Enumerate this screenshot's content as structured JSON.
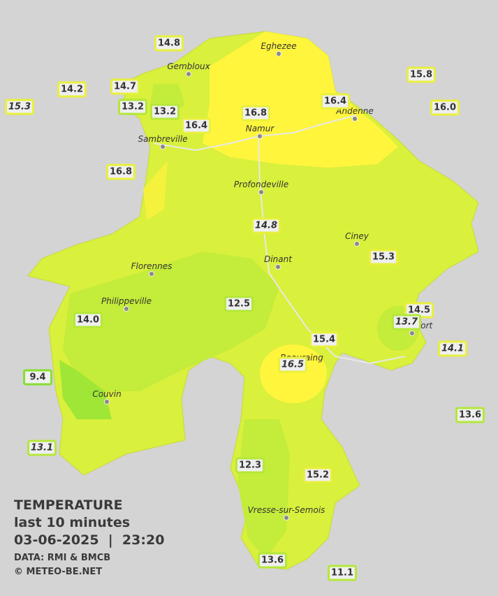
{
  "legend": {
    "title": "TEMPERATURE",
    "subtitle": "last 10 minutes",
    "datetime": "03-06-2025  |  23:20",
    "source": "DATA: RMI & BMCB",
    "copyright": "© METEO-BE.NET"
  },
  "cities": [
    "Eghezee",
    "Gembloux",
    "Andenne",
    "Namur",
    "Sambreville",
    "Profondeville",
    "Ciney",
    "Florennes",
    "Dinant",
    "Philippeville",
    "Rochefort",
    "Beauraing",
    "Couvin",
    "Vresse-sur-Semois"
  ],
  "stations": [
    "14.8",
    "14.2",
    "14.7",
    "15.3",
    "13.2",
    "13.2",
    "16.4",
    "16.8",
    "16.4",
    "15.8",
    "16.0",
    "16.8",
    "14.8",
    "15.3",
    "12.5",
    "14.0",
    "14.5",
    "13.7",
    "15.4",
    "14.1",
    "16.5",
    "9.4",
    "13.6",
    "13.1",
    "12.3",
    "15.2",
    "13.6",
    "11.1"
  ]
}
